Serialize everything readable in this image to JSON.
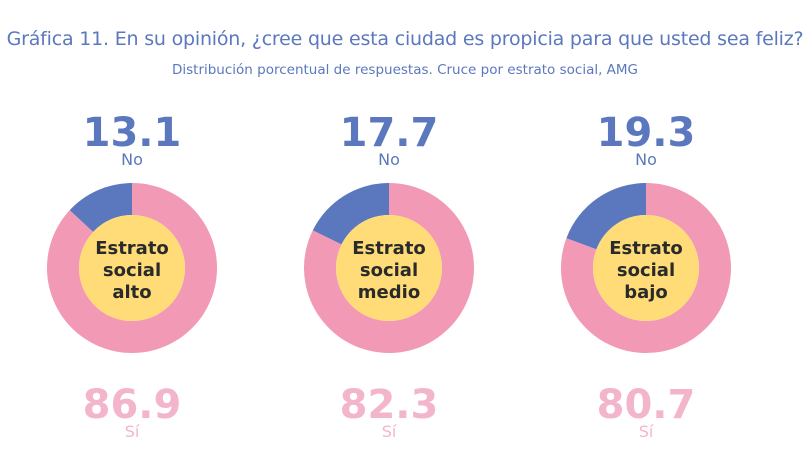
{
  "title": "Gráfica 11. En su opinión, ¿cree que esta ciudad es propicia para que usted sea feliz?",
  "subtitle": "Distribución porcentual de respuestas. Cruce por estrato social, AMG",
  "colors": {
    "no": "#5B78BE",
    "si": "#F199B5",
    "center": "#FFDC78",
    "si_label": "#F3B5CC"
  },
  "chart_data": {
    "type": "pie",
    "title": "Gráfica 11. En su opinión, ¿cree que esta ciudad es propicia para que usted sea feliz?",
    "subtitle": "Distribución porcentual de respuestas. Cruce por estrato social, AMG",
    "charts": [
      {
        "center_label": [
          "Estrato",
          "social",
          "alto"
        ],
        "slices": [
          {
            "label": "No",
            "value": 13.1
          },
          {
            "label": "Sí",
            "value": 86.9
          }
        ]
      },
      {
        "center_label": [
          "Estrato",
          "social",
          "medio"
        ],
        "slices": [
          {
            "label": "No",
            "value": 17.7
          },
          {
            "label": "Sí",
            "value": 82.3
          }
        ]
      },
      {
        "center_label": [
          "Estrato",
          "social",
          "bajo"
        ],
        "slices": [
          {
            "label": "No",
            "value": 19.3
          },
          {
            "label": "Sí",
            "value": 80.7
          }
        ]
      }
    ]
  }
}
